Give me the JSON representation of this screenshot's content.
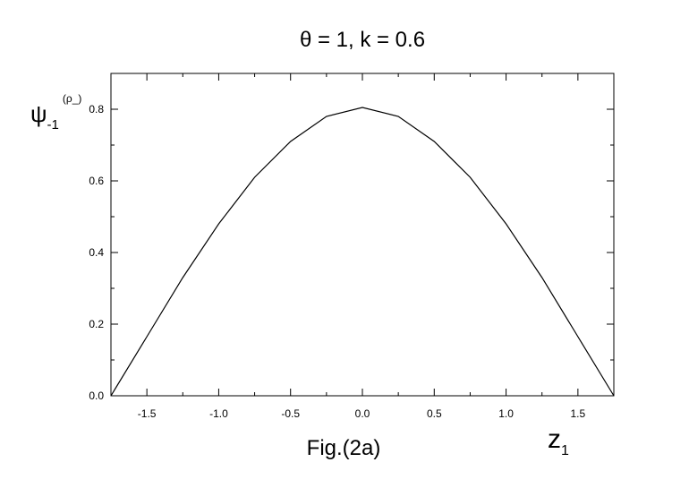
{
  "chart_data": {
    "type": "line",
    "title": "θ = 1, k = 0.6",
    "y_label": {
      "main": "ψ",
      "sub": "-1",
      "sup": "(ρ_)"
    },
    "x_label": {
      "main": "z",
      "sub": "1"
    },
    "caption": "Fig.(2a)",
    "x": [
      -1.75,
      -1.5,
      -1.25,
      -1.0,
      -0.75,
      -0.5,
      -0.25,
      0,
      0.25,
      0.5,
      0.75,
      1.0,
      1.25,
      1.5,
      1.75
    ],
    "values": [
      0,
      0.165,
      0.33,
      0.48,
      0.61,
      0.71,
      0.78,
      0.805,
      0.78,
      0.71,
      0.61,
      0.48,
      0.33,
      0.165,
      0
    ],
    "color": "#000000",
    "xlim": [
      -1.75,
      1.75
    ],
    "xticks": [
      -1.5,
      {
        "value": -1.0,
        "label": "-1.0"
      },
      -0.5,
      {
        "value": 0,
        "label": "0.0"
      },
      0.5,
      {
        "value": 1.0,
        "label": "1.0"
      },
      1.5
    ],
    "ylim": [
      0,
      0.9
    ],
    "yticks": [
      {
        "value": 0,
        "label": "0.0"
      },
      0.2,
      0.4,
      0.6,
      0.8
    ]
  }
}
